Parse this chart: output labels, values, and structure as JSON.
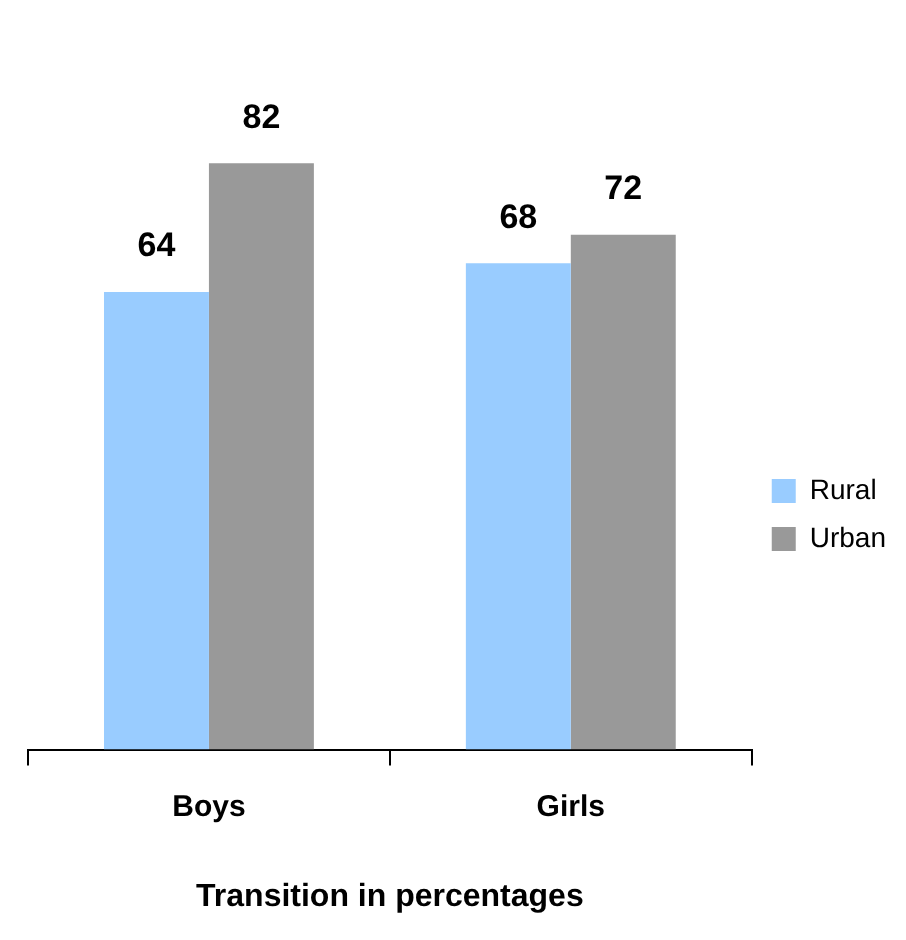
{
  "chart_data": {
    "type": "bar",
    "xlabel": "Transition in percentages",
    "categories": [
      "Boys",
      "Girls"
    ],
    "series": [
      {
        "name": "Rural",
        "color": "#99ccff",
        "values": [
          64,
          68
        ]
      },
      {
        "name": "Urban",
        "color": "#999999",
        "values": [
          82,
          72
        ]
      }
    ],
    "data_labels": true,
    "legend": "right",
    "grid": false
  }
}
